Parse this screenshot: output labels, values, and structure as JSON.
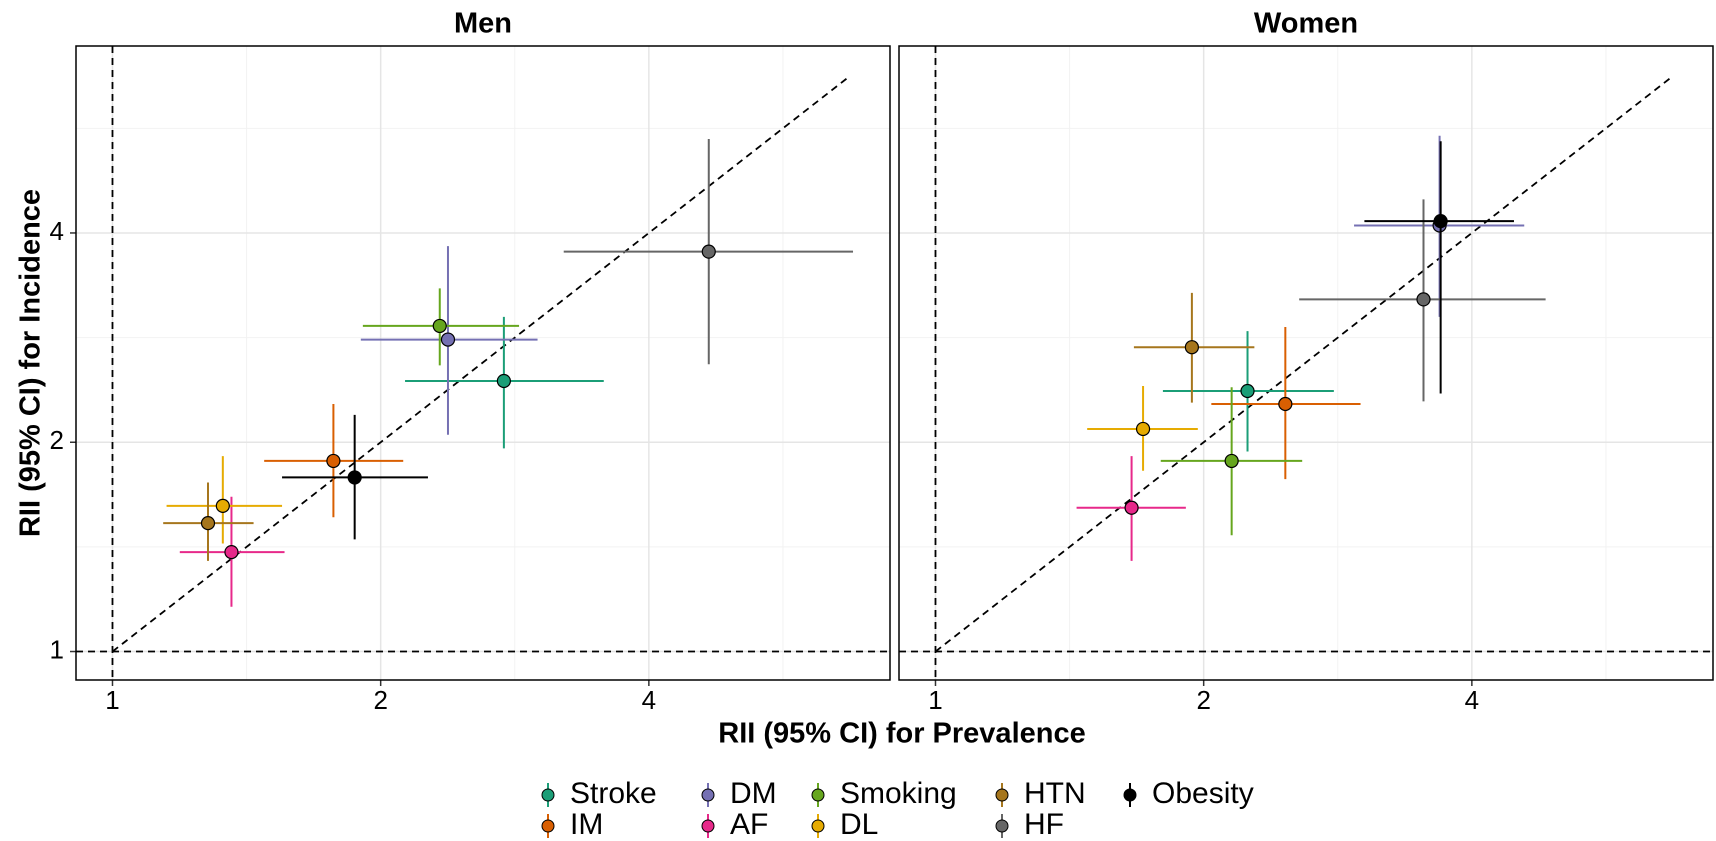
{
  "chart_data": {
    "type": "scatter",
    "x_label": "RII (95% CI) for Prevalence",
    "y_label": "RII (95% CI) for Incidence",
    "log_base": 2,
    "xlim": [
      0.91,
      7.46
    ],
    "ylim": [
      0.91,
      7.43
    ],
    "xticks": [
      1,
      2,
      4
    ],
    "yticks": [
      1,
      2,
      4
    ],
    "grid": true,
    "reference_lines": {
      "x": 1,
      "y": 1
    },
    "diagonal": [
      1,
      6.7
    ],
    "legend": "bottom",
    "series": [
      {
        "name": "Stroke",
        "color": "#1b9e77"
      },
      {
        "name": "IM",
        "color": "#d95f02"
      },
      {
        "name": "DM",
        "color": "#7570b3"
      },
      {
        "name": "AF",
        "color": "#e7298a"
      },
      {
        "name": "Smoking",
        "color": "#66a61e"
      },
      {
        "name": "DL",
        "color": "#e6ab02"
      },
      {
        "name": "HTN",
        "color": "#a6761d"
      },
      {
        "name": "HF",
        "color": "#666666"
      },
      {
        "name": "Obesity",
        "color": "#000000"
      }
    ],
    "panels": [
      {
        "title": "Men",
        "points": [
          {
            "x": 2.75,
            "y": 2.45,
            "x_ci": [
              2.13,
              3.56
            ],
            "y_ci": [
              1.96,
              3.03
            ]
          },
          {
            "x": 1.77,
            "y": 1.88,
            "x_ci": [
              1.48,
              2.12
            ],
            "y_ci": [
              1.56,
              2.27
            ]
          },
          {
            "x": 2.38,
            "y": 2.81,
            "x_ci": [
              1.9,
              3.0
            ],
            "y_ci": [
              2.05,
              3.83
            ]
          },
          {
            "x": 1.36,
            "y": 1.39,
            "x_ci": [
              1.19,
              1.56
            ],
            "y_ci": [
              1.16,
              1.67
            ]
          },
          {
            "x": 2.33,
            "y": 2.94,
            "x_ci": [
              1.91,
              2.86
            ],
            "y_ci": [
              2.58,
              3.33
            ]
          },
          {
            "x": 1.33,
            "y": 1.62,
            "x_ci": [
              1.15,
              1.55
            ],
            "y_ci": [
              1.43,
              1.91
            ]
          },
          {
            "x": 1.28,
            "y": 1.53,
            "x_ci": [
              1.14,
              1.44
            ],
            "y_ci": [
              1.35,
              1.75
            ]
          },
          {
            "x": 4.67,
            "y": 3.76,
            "x_ci": [
              3.21,
              6.78
            ],
            "y_ci": [
              2.59,
              5.46
            ]
          },
          {
            "x": 1.87,
            "y": 1.78,
            "x_ci": [
              1.55,
              2.26
            ],
            "y_ci": [
              1.45,
              2.19
            ]
          }
        ]
      },
      {
        "title": "Women",
        "points": [
          {
            "x": 2.24,
            "y": 2.37,
            "x_ci": [
              1.8,
              2.8
            ],
            "y_ci": [
              1.94,
              2.89
            ]
          },
          {
            "x": 2.47,
            "y": 2.27,
            "x_ci": [
              2.04,
              3.0
            ],
            "y_ci": [
              1.77,
              2.93
            ]
          },
          {
            "x": 3.68,
            "y": 4.1,
            "x_ci": [
              2.95,
              4.58
            ],
            "y_ci": [
              3.03,
              5.52
            ]
          },
          {
            "x": 1.66,
            "y": 1.61,
            "x_ci": [
              1.44,
              1.91
            ],
            "y_ci": [
              1.35,
              1.91
            ]
          },
          {
            "x": 2.15,
            "y": 1.88,
            "x_ci": [
              1.79,
              2.58
            ],
            "y_ci": [
              1.47,
              2.4
            ]
          },
          {
            "x": 1.71,
            "y": 2.09,
            "x_ci": [
              1.48,
              1.97
            ],
            "y_ci": [
              1.82,
              2.41
            ]
          },
          {
            "x": 1.94,
            "y": 2.74,
            "x_ci": [
              1.67,
              2.28
            ],
            "y_ci": [
              2.28,
              3.28
            ]
          },
          {
            "x": 3.53,
            "y": 3.21,
            "x_ci": [
              2.56,
              4.84
            ],
            "y_ci": [
              2.29,
              4.47
            ]
          },
          {
            "x": 3.69,
            "y": 4.16,
            "x_ci": [
              3.03,
              4.46
            ],
            "y_ci": [
              2.35,
              5.42
            ]
          }
        ]
      }
    ]
  }
}
